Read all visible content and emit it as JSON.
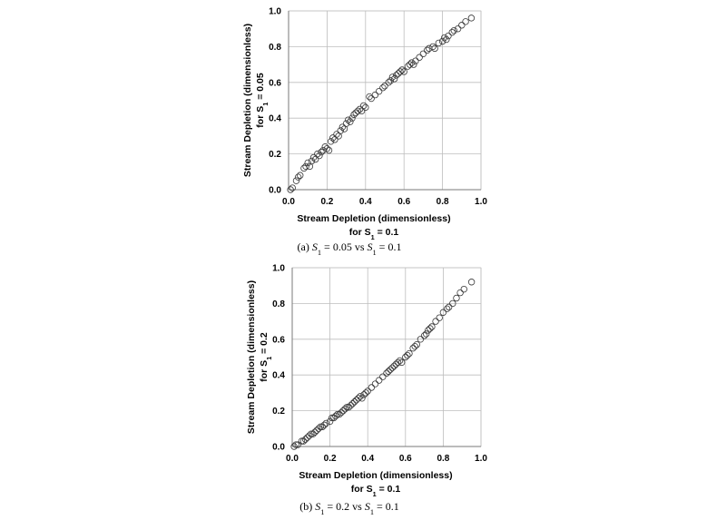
{
  "chart_data": [
    {
      "type": "scatter",
      "xlabel": [
        "Stream Depletion (dimensionless)",
        "for S",
        "1",
        " = 0.1"
      ],
      "ylabel": [
        "Stream Depletion (dimensionless)",
        "for S",
        "1",
        " = 0.05"
      ],
      "caption": [
        "(a) ",
        "S",
        "1",
        " = 0.05 vs ",
        "S",
        "1",
        " = 0.1"
      ],
      "xlim": [
        0,
        1
      ],
      "ylim": [
        0,
        1
      ],
      "xticks": [
        "0.0",
        "0.2",
        "0.4",
        "0.6",
        "0.8",
        "1.0"
      ],
      "yticks": [
        "0.0",
        "0.2",
        "0.4",
        "0.6",
        "0.8",
        "1.0"
      ],
      "grid": true,
      "points": [
        [
          0.01,
          0.0
        ],
        [
          0.02,
          0.01
        ],
        [
          0.04,
          0.05
        ],
        [
          0.05,
          0.07
        ],
        [
          0.06,
          0.08
        ],
        [
          0.08,
          0.12
        ],
        [
          0.09,
          0.13
        ],
        [
          0.1,
          0.15
        ],
        [
          0.11,
          0.13
        ],
        [
          0.12,
          0.16
        ],
        [
          0.13,
          0.18
        ],
        [
          0.14,
          0.17
        ],
        [
          0.15,
          0.2
        ],
        [
          0.16,
          0.19
        ],
        [
          0.17,
          0.21
        ],
        [
          0.18,
          0.22
        ],
        [
          0.19,
          0.24
        ],
        [
          0.2,
          0.23
        ],
        [
          0.21,
          0.22
        ],
        [
          0.22,
          0.27
        ],
        [
          0.23,
          0.29
        ],
        [
          0.24,
          0.28
        ],
        [
          0.25,
          0.31
        ],
        [
          0.26,
          0.3
        ],
        [
          0.27,
          0.33
        ],
        [
          0.28,
          0.35
        ],
        [
          0.29,
          0.34
        ],
        [
          0.3,
          0.37
        ],
        [
          0.31,
          0.39
        ],
        [
          0.32,
          0.38
        ],
        [
          0.33,
          0.4
        ],
        [
          0.34,
          0.42
        ],
        [
          0.35,
          0.43
        ],
        [
          0.36,
          0.44
        ],
        [
          0.37,
          0.45
        ],
        [
          0.38,
          0.44
        ],
        [
          0.39,
          0.47
        ],
        [
          0.4,
          0.46
        ],
        [
          0.42,
          0.52
        ],
        [
          0.43,
          0.51
        ],
        [
          0.45,
          0.53
        ],
        [
          0.47,
          0.55
        ],
        [
          0.49,
          0.57
        ],
        [
          0.5,
          0.58
        ],
        [
          0.52,
          0.6
        ],
        [
          0.53,
          0.61
        ],
        [
          0.54,
          0.63
        ],
        [
          0.55,
          0.62
        ],
        [
          0.56,
          0.64
        ],
        [
          0.57,
          0.65
        ],
        [
          0.58,
          0.66
        ],
        [
          0.59,
          0.67
        ],
        [
          0.6,
          0.66
        ],
        [
          0.62,
          0.69
        ],
        [
          0.63,
          0.7
        ],
        [
          0.64,
          0.71
        ],
        [
          0.65,
          0.7
        ],
        [
          0.66,
          0.72
        ],
        [
          0.68,
          0.74
        ],
        [
          0.7,
          0.76
        ],
        [
          0.72,
          0.78
        ],
        [
          0.73,
          0.79
        ],
        [
          0.75,
          0.8
        ],
        [
          0.76,
          0.79
        ],
        [
          0.78,
          0.82
        ],
        [
          0.8,
          0.83
        ],
        [
          0.81,
          0.85
        ],
        [
          0.82,
          0.84
        ],
        [
          0.83,
          0.86
        ],
        [
          0.85,
          0.88
        ],
        [
          0.86,
          0.89
        ],
        [
          0.88,
          0.9
        ],
        [
          0.9,
          0.92
        ],
        [
          0.92,
          0.94
        ],
        [
          0.95,
          0.96
        ]
      ]
    },
    {
      "type": "scatter",
      "xlabel": [
        "Stream Depletion (dimensionless)",
        "for S",
        "1",
        " = 0.1"
      ],
      "ylabel": [
        "Stream Depletion (dimensionless)",
        "for S",
        "1",
        " = 0.2"
      ],
      "caption": [
        "(b) ",
        "S",
        "1",
        " = 0.2 vs ",
        "S",
        "1",
        " = 0.1"
      ],
      "xlim": [
        0,
        1
      ],
      "ylim": [
        0,
        1
      ],
      "xticks": [
        "0.0",
        "0.2",
        "0.4",
        "0.6",
        "0.8",
        "1.0"
      ],
      "yticks": [
        "0.0",
        "0.2",
        "0.4",
        "0.6",
        "0.8",
        "1.0"
      ],
      "grid": true,
      "points": [
        [
          0.01,
          0.0
        ],
        [
          0.02,
          0.01
        ],
        [
          0.03,
          0.01
        ],
        [
          0.05,
          0.03
        ],
        [
          0.06,
          0.03
        ],
        [
          0.07,
          0.04
        ],
        [
          0.08,
          0.05
        ],
        [
          0.09,
          0.06
        ],
        [
          0.1,
          0.07
        ],
        [
          0.11,
          0.07
        ],
        [
          0.12,
          0.08
        ],
        [
          0.13,
          0.09
        ],
        [
          0.14,
          0.1
        ],
        [
          0.15,
          0.11
        ],
        [
          0.16,
          0.11
        ],
        [
          0.17,
          0.12
        ],
        [
          0.18,
          0.13
        ],
        [
          0.2,
          0.14
        ],
        [
          0.21,
          0.16
        ],
        [
          0.22,
          0.16
        ],
        [
          0.23,
          0.17
        ],
        [
          0.24,
          0.18
        ],
        [
          0.25,
          0.18
        ],
        [
          0.26,
          0.19
        ],
        [
          0.27,
          0.2
        ],
        [
          0.28,
          0.21
        ],
        [
          0.29,
          0.22
        ],
        [
          0.3,
          0.22
        ],
        [
          0.31,
          0.23
        ],
        [
          0.32,
          0.24
        ],
        [
          0.33,
          0.25
        ],
        [
          0.34,
          0.26
        ],
        [
          0.35,
          0.27
        ],
        [
          0.36,
          0.28
        ],
        [
          0.37,
          0.27
        ],
        [
          0.38,
          0.29
        ],
        [
          0.39,
          0.3
        ],
        [
          0.4,
          0.31
        ],
        [
          0.42,
          0.33
        ],
        [
          0.44,
          0.35
        ],
        [
          0.46,
          0.37
        ],
        [
          0.48,
          0.39
        ],
        [
          0.5,
          0.41
        ],
        [
          0.51,
          0.42
        ],
        [
          0.52,
          0.43
        ],
        [
          0.53,
          0.44
        ],
        [
          0.54,
          0.45
        ],
        [
          0.55,
          0.46
        ],
        [
          0.56,
          0.47
        ],
        [
          0.57,
          0.48
        ],
        [
          0.58,
          0.47
        ],
        [
          0.6,
          0.5
        ],
        [
          0.61,
          0.51
        ],
        [
          0.62,
          0.52
        ],
        [
          0.64,
          0.55
        ],
        [
          0.65,
          0.56
        ],
        [
          0.66,
          0.57
        ],
        [
          0.68,
          0.6
        ],
        [
          0.7,
          0.62
        ],
        [
          0.71,
          0.63
        ],
        [
          0.72,
          0.65
        ],
        [
          0.73,
          0.66
        ],
        [
          0.74,
          0.67
        ],
        [
          0.76,
          0.7
        ],
        [
          0.78,
          0.72
        ],
        [
          0.8,
          0.75
        ],
        [
          0.82,
          0.77
        ],
        [
          0.83,
          0.78
        ],
        [
          0.85,
          0.8
        ],
        [
          0.87,
          0.83
        ],
        [
          0.89,
          0.86
        ],
        [
          0.91,
          0.88
        ],
        [
          0.95,
          0.92
        ]
      ]
    }
  ]
}
